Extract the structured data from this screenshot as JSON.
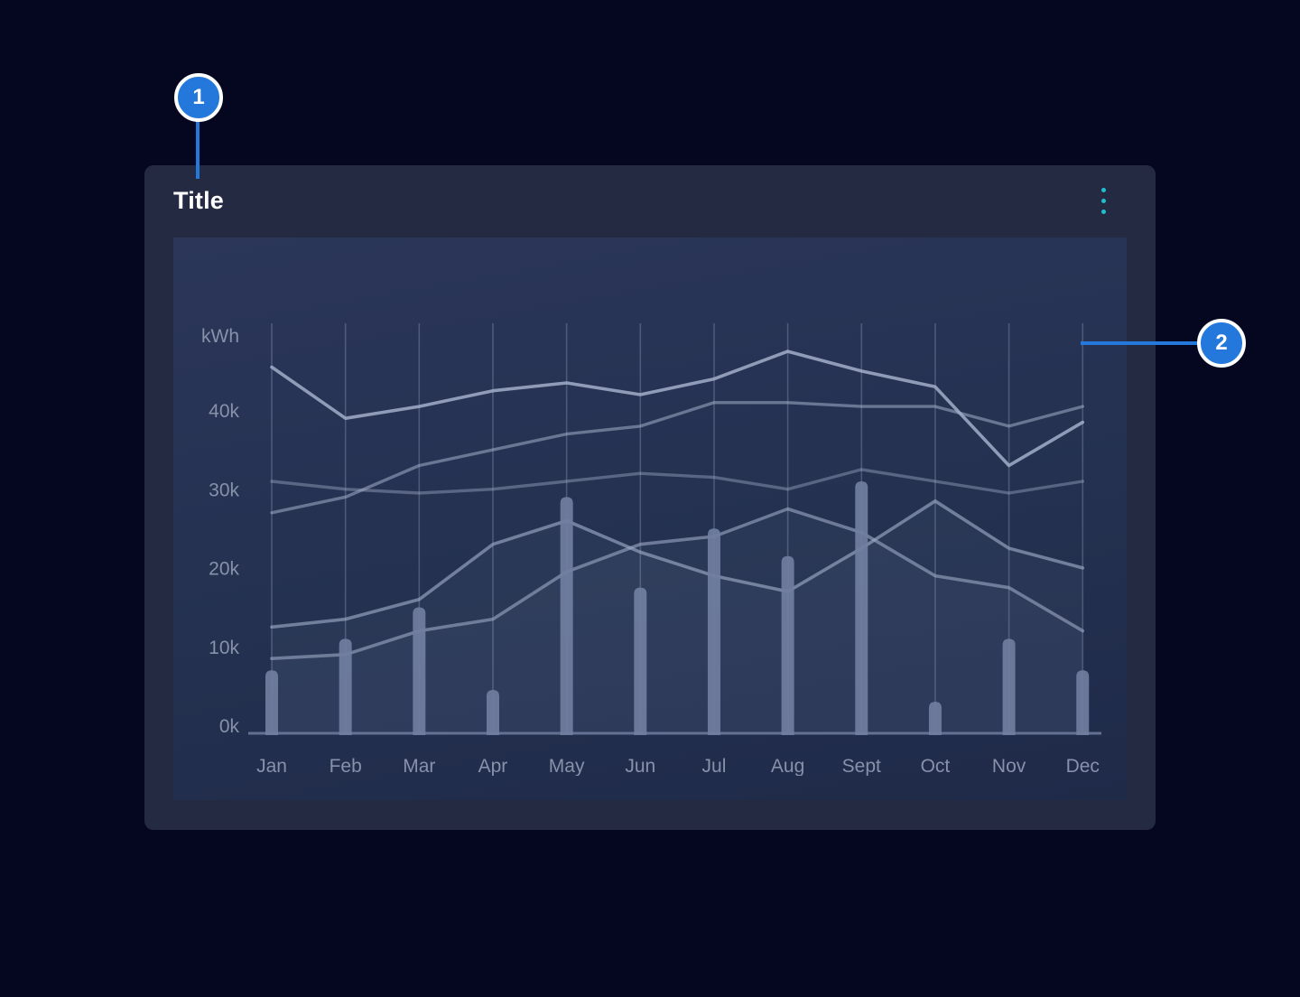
{
  "card": {
    "title": "Title",
    "menu_icon": "kebab-vertical-icon"
  },
  "callouts": [
    {
      "label": "1",
      "points_to": "card title"
    },
    {
      "label": "2",
      "points_to": "chart plot area"
    }
  ],
  "colors": {
    "page_bg": "#05061f",
    "card_bg": "#252a43",
    "panel_bg_top": "#2b3659",
    "panel_bg_bottom": "#1f2a49",
    "accent_teal": "#1ec0ce",
    "callout_blue": "#2478db",
    "axis_text": "#8791aa",
    "line_slate": "#a2aec9",
    "bar_fill": "#717e9f"
  },
  "chart_data": {
    "type": "combo: 5 line series + 1 bar series",
    "title": "",
    "unit_label": "kWh",
    "xlabel": "",
    "ylabel": "kWh",
    "y_ticks": [
      "0k",
      "10k",
      "20k",
      "30k",
      "40k"
    ],
    "y_tick_values_k": [
      0,
      10,
      20,
      30,
      40
    ],
    "ylim_k": [
      0,
      52
    ],
    "grid": "vertical month gridlines only, no horizontal gridlines",
    "legend": "none",
    "categories": [
      "Jan",
      "Feb",
      "Mar",
      "Apr",
      "May",
      "Jun",
      "Jul",
      "Aug",
      "Sept",
      "Oct",
      "Nov",
      "Dec"
    ],
    "bar_series": {
      "name": "monthly-consumption-bars",
      "values_k": [
        8,
        12,
        16,
        5.5,
        30,
        18.5,
        26,
        22.5,
        32,
        4,
        12,
        8
      ]
    },
    "line_series": [
      {
        "name": "line-1-top",
        "values_k": [
          46.5,
          40,
          41.5,
          43.5,
          44.5,
          43,
          45,
          48.5,
          46,
          44,
          34,
          39.5
        ]
      },
      {
        "name": "line-2",
        "values_k": [
          28,
          30,
          34,
          36,
          38,
          39,
          42,
          42,
          41.5,
          41.5,
          39,
          41.5
        ]
      },
      {
        "name": "line-3-flat",
        "values_k": [
          32,
          31,
          30.5,
          31,
          32,
          33,
          32.5,
          31,
          33.5,
          32,
          30.5,
          32
        ]
      },
      {
        "name": "line-4",
        "values_k": [
          13.5,
          14.5,
          17,
          24,
          27,
          23,
          20,
          18,
          23.5,
          29.5,
          23.5,
          21
        ]
      },
      {
        "name": "line-5-bottom",
        "values_k": [
          9.5,
          10,
          13,
          14.5,
          20.5,
          24,
          25,
          28.5,
          25.5,
          20,
          18.5,
          13
        ]
      }
    ]
  }
}
